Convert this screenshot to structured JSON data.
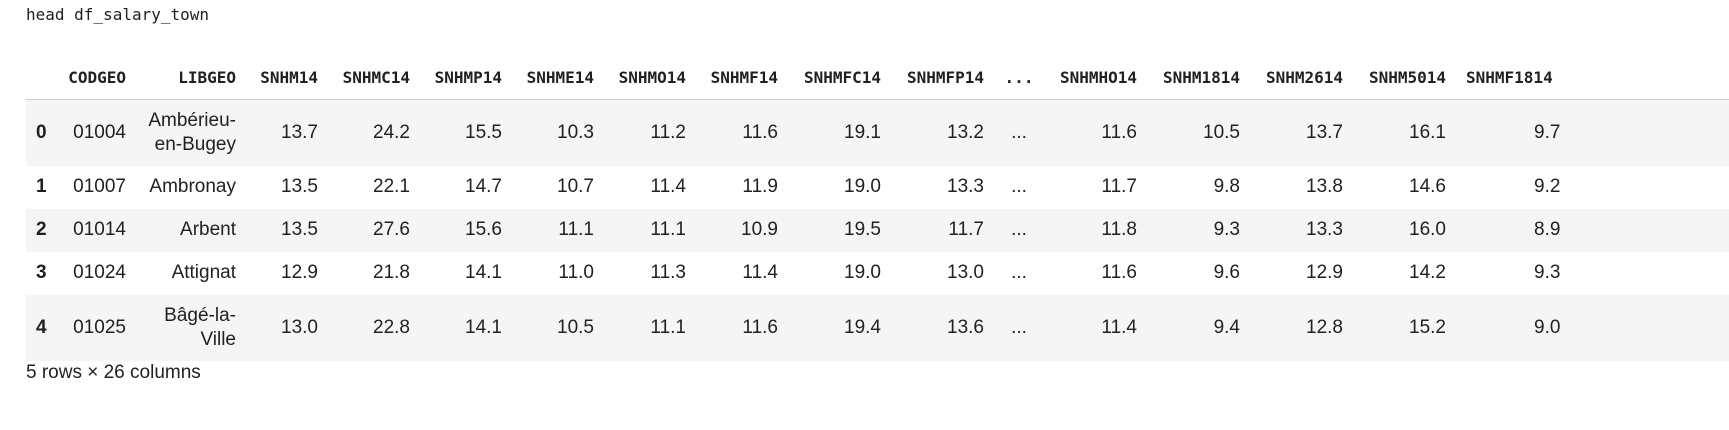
{
  "code": {
    "command": "head df_salary_town"
  },
  "table": {
    "columns": [
      "",
      "CODGEO",
      "LIBGEO",
      "SNHM14",
      "SNHMC14",
      "SNHMP14",
      "SNHME14",
      "SNHMO14",
      "SNHMF14",
      "SNHMFC14",
      "SNHMFP14",
      "...",
      "SNHMHO14",
      "SNHM1814",
      "SNHM2614",
      "SNHM5014",
      "SNHMF1814"
    ],
    "rows": [
      [
        "0",
        "01004",
        "Ambérieu-en-Bugey",
        "13.7",
        "24.2",
        "15.5",
        "10.3",
        "11.2",
        "11.6",
        "19.1",
        "13.2",
        "...",
        "11.6",
        "10.5",
        "13.7",
        "16.1",
        "9.7"
      ],
      [
        "1",
        "01007",
        "Ambronay",
        "13.5",
        "22.1",
        "14.7",
        "10.7",
        "11.4",
        "11.9",
        "19.0",
        "13.3",
        "...",
        "11.7",
        "9.8",
        "13.8",
        "14.6",
        "9.2"
      ],
      [
        "2",
        "01014",
        "Arbent",
        "13.5",
        "27.6",
        "15.6",
        "11.1",
        "11.1",
        "10.9",
        "19.5",
        "11.7",
        "...",
        "11.8",
        "9.3",
        "13.3",
        "16.0",
        "8.9"
      ],
      [
        "3",
        "01024",
        "Attignat",
        "12.9",
        "21.8",
        "14.1",
        "11.0",
        "11.3",
        "11.4",
        "19.0",
        "13.0",
        "...",
        "11.6",
        "9.6",
        "12.9",
        "14.2",
        "9.3"
      ],
      [
        "4",
        "01025",
        "Bâgé-la-Ville",
        "13.0",
        "22.8",
        "14.1",
        "10.5",
        "11.1",
        "11.6",
        "19.4",
        "13.6",
        "...",
        "11.4",
        "9.4",
        "12.8",
        "15.2",
        "9.0"
      ]
    ],
    "shape_text": "5 rows × 26 columns"
  }
}
